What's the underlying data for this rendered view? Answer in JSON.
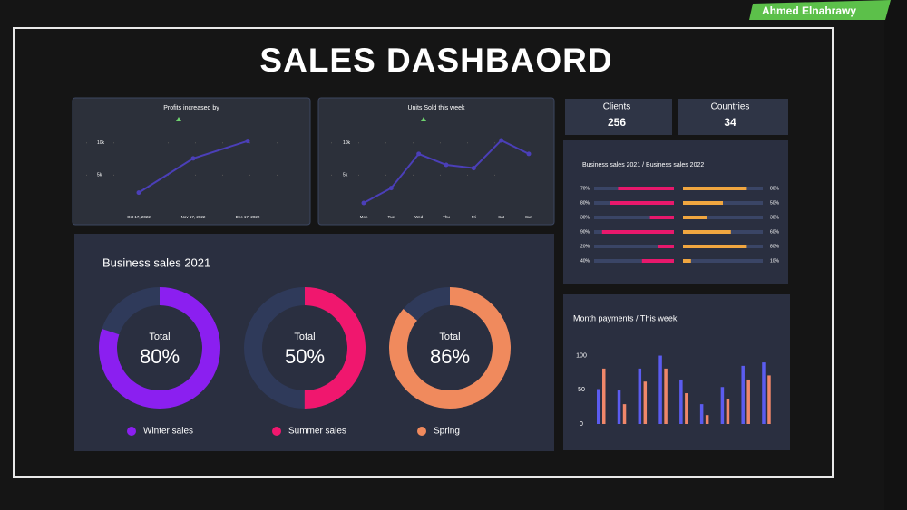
{
  "badge": "Ahmed Elnahrawy",
  "title": "SALES DASHBAORD",
  "kpis": [
    {
      "label": "Clients",
      "value": 256
    },
    {
      "label": "Countries",
      "value": 34
    }
  ],
  "chart_data": [
    {
      "type": "line",
      "title": "Profits increased by",
      "categories": [
        "Oct 17, 2022",
        "Nov 17, 2022",
        "Dec 17, 2022"
      ],
      "values": [
        2.3,
        7.6,
        10.3
      ],
      "color": "#4b3fb8",
      "ylim": [
        0,
        12.5
      ],
      "yticks": [
        {
          "value": 5,
          "label": "5k"
        },
        {
          "value": 10,
          "label": "10k"
        }
      ],
      "grid": true
    },
    {
      "type": "line",
      "title": "Units Sold this week",
      "categories": [
        "Mon",
        "Tue",
        "Wed",
        "Thu",
        "Fri",
        "Sat",
        "Sun"
      ],
      "values": [
        0.7,
        3.0,
        8.3,
        6.6,
        6.1,
        10.4,
        8.3
      ],
      "color": "#4b3fb8",
      "ylim": [
        0,
        12.5
      ],
      "yticks": [
        {
          "value": 5,
          "label": "5k"
        },
        {
          "value": 10,
          "label": "10k"
        }
      ],
      "grid": true
    },
    {
      "type": "donut",
      "title": "Business sales 2021",
      "center_label": "Total",
      "series": [
        {
          "name": "Winter sales",
          "color": "#8b1ff0",
          "values": [
            80
          ],
          "value_labels": [
            "80%"
          ]
        },
        {
          "name": "Summer sales",
          "color": "#f0176e",
          "values": [
            50
          ],
          "value_labels": [
            "50%"
          ]
        },
        {
          "name": "Spring",
          "color": "#f08a5d",
          "values": [
            86
          ],
          "value_labels": [
            "86%"
          ]
        }
      ]
    },
    {
      "type": "butterfly",
      "title": "Business sales 2021 / Business sales 2022",
      "xlim": [
        0,
        100
      ],
      "series": [
        {
          "color": "#e8186c",
          "values": [
            70,
            80,
            30,
            90,
            20,
            40
          ],
          "value_labels": [
            "70%",
            "80%",
            "30%",
            "90%",
            "20%",
            "40%"
          ]
        },
        {
          "color": "#f0a640",
          "values": [
            80,
            50,
            30,
            60,
            80,
            10
          ],
          "value_labels": [
            "80%",
            "50%",
            "30%",
            "60%",
            "80%",
            "10%"
          ]
        }
      ]
    },
    {
      "type": "bar",
      "title": "Month payments / This week",
      "ylim": [
        0,
        110
      ],
      "yticks": [
        0,
        50,
        100
      ],
      "series": [
        {
          "color": "#5b5cf0",
          "values": [
            51,
            49,
            81,
            100,
            65,
            29,
            54,
            85,
            90
          ]
        },
        {
          "color": "#f0876a",
          "values": [
            81,
            29,
            62,
            81,
            45,
            13,
            36,
            65,
            71
          ]
        }
      ]
    }
  ]
}
